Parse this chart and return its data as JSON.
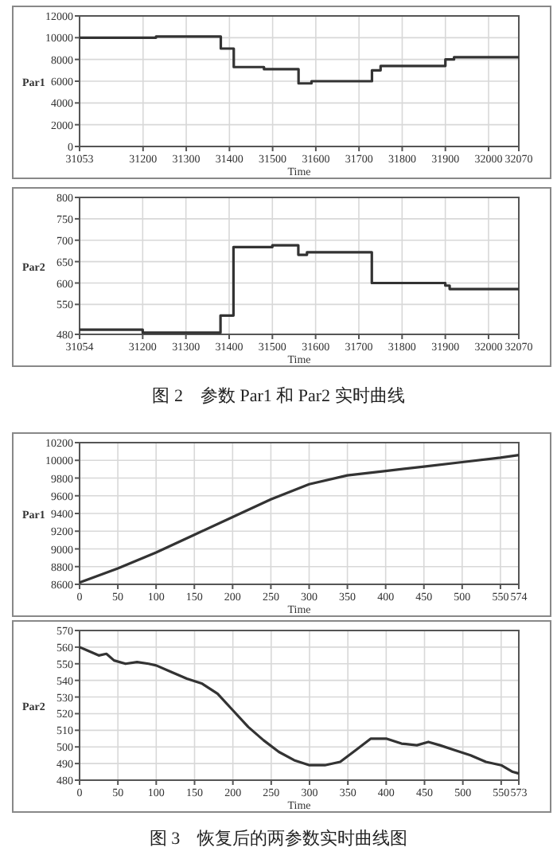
{
  "chart_data": [
    {
      "type": "step",
      "ylabel": "Par1",
      "xlabel": "Time",
      "grid": true,
      "xlim": [
        31053,
        32070
      ],
      "ylim": [
        0,
        12000
      ],
      "xticks": [
        31053,
        31200,
        31300,
        31400,
        31500,
        31600,
        31700,
        31800,
        31900,
        32000,
        32070
      ],
      "yticks": [
        0,
        2000,
        4000,
        6000,
        8000,
        10000,
        12000
      ],
      "series": [
        {
          "color": "#333333",
          "x": [
            31053,
            31230,
            31380,
            31410,
            31480,
            31560,
            31590,
            31730,
            31750,
            31900,
            31920,
            32070
          ],
          "values": [
            10000,
            10100,
            9000,
            7300,
            7100,
            5800,
            6000,
            7000,
            7400,
            8000,
            8200,
            8200
          ]
        }
      ]
    },
    {
      "type": "step",
      "ylabel": "Par2",
      "xlabel": "Time",
      "grid": true,
      "xlim": [
        31054,
        32070
      ],
      "ylim": [
        480,
        800
      ],
      "xticks": [
        31054,
        31200,
        31300,
        31400,
        31500,
        31600,
        31700,
        31800,
        31900,
        32000,
        32070
      ],
      "yticks": [
        480,
        550,
        600,
        650,
        700,
        750,
        800
      ],
      "series": [
        {
          "color": "#333333",
          "x": [
            31054,
            31200,
            31380,
            31410,
            31500,
            31560,
            31580,
            31730,
            31900,
            31910,
            32070
          ],
          "values": [
            491,
            484,
            524,
            684,
            688,
            666,
            672,
            600,
            594,
            586,
            586
          ]
        }
      ],
      "annotations": [
        "图 2　参数 Par1 和 Par2 实时曲线"
      ]
    },
    {
      "type": "line",
      "ylabel": "Par1",
      "xlabel": "Time",
      "grid": true,
      "xlim": [
        0,
        574
      ],
      "ylim": [
        8600,
        10200
      ],
      "xticks": [
        0,
        50,
        100,
        150,
        200,
        250,
        300,
        350,
        400,
        450,
        500,
        550,
        574
      ],
      "yticks": [
        8600,
        8800,
        9000,
        9200,
        9400,
        9600,
        9800,
        10000,
        10200
      ],
      "series": [
        {
          "color": "#333333",
          "x": [
            0,
            50,
            100,
            150,
            200,
            250,
            300,
            350,
            400,
            450,
            500,
            550,
            574
          ],
          "values": [
            8620,
            8780,
            8960,
            9160,
            9360,
            9560,
            9730,
            9830,
            9880,
            9930,
            9980,
            10030,
            10060
          ]
        }
      ]
    },
    {
      "type": "line",
      "ylabel": "Par2",
      "xlabel": "Time",
      "grid": true,
      "xlim": [
        0,
        573
      ],
      "ylim": [
        480,
        570
      ],
      "xticks": [
        0,
        50,
        100,
        150,
        200,
        250,
        300,
        350,
        400,
        450,
        500,
        550,
        573
      ],
      "yticks": [
        480,
        490,
        500,
        510,
        520,
        530,
        540,
        550,
        560,
        570
      ],
      "series": [
        {
          "color": "#333333",
          "x": [
            0,
            10,
            25,
            35,
            45,
            60,
            75,
            90,
            100,
            120,
            140,
            160,
            180,
            200,
            220,
            240,
            260,
            280,
            300,
            320,
            340,
            360,
            380,
            400,
            420,
            440,
            455,
            470,
            490,
            510,
            530,
            550,
            565,
            573
          ],
          "values": [
            560,
            558,
            555,
            556,
            552,
            550,
            551,
            550,
            549,
            545,
            541,
            538,
            532,
            522,
            512,
            504,
            497,
            492,
            489,
            489,
            491,
            498,
            505,
            505,
            502,
            501,
            503,
            501,
            498,
            495,
            491,
            489,
            485,
            484
          ]
        }
      ],
      "annotations": [
        "图 3　恢复后的两参数实时曲线图"
      ]
    }
  ]
}
